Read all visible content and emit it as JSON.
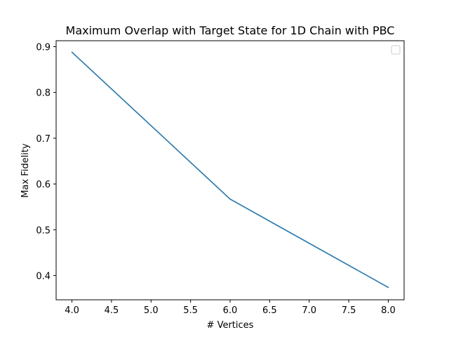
{
  "chart_data": {
    "type": "line",
    "title": "Maximum Overlap with Target State for 1D Chain with PBC",
    "xlabel": "# Vertices",
    "ylabel": "Max Fidelity",
    "xlim": [
      3.8,
      8.2
    ],
    "ylim": [
      0.347,
      0.913
    ],
    "xticks": [
      4.0,
      4.5,
      5.0,
      5.5,
      6.0,
      6.5,
      7.0,
      7.5,
      8.0
    ],
    "xtick_labels": [
      "4.0",
      "4.5",
      "5.0",
      "5.5",
      "6.0",
      "6.5",
      "7.0",
      "7.5",
      "8.0"
    ],
    "yticks": [
      0.4,
      0.5,
      0.6,
      0.7,
      0.8,
      0.9
    ],
    "ytick_labels": [
      "0.4",
      "0.5",
      "0.6",
      "0.7",
      "0.8",
      "0.9"
    ],
    "grid": false,
    "legend": "top-right",
    "series": [
      {
        "color": "#1f77b4",
        "x": [
          4,
          6,
          8
        ],
        "y": [
          0.888,
          0.567,
          0.374
        ]
      }
    ]
  }
}
